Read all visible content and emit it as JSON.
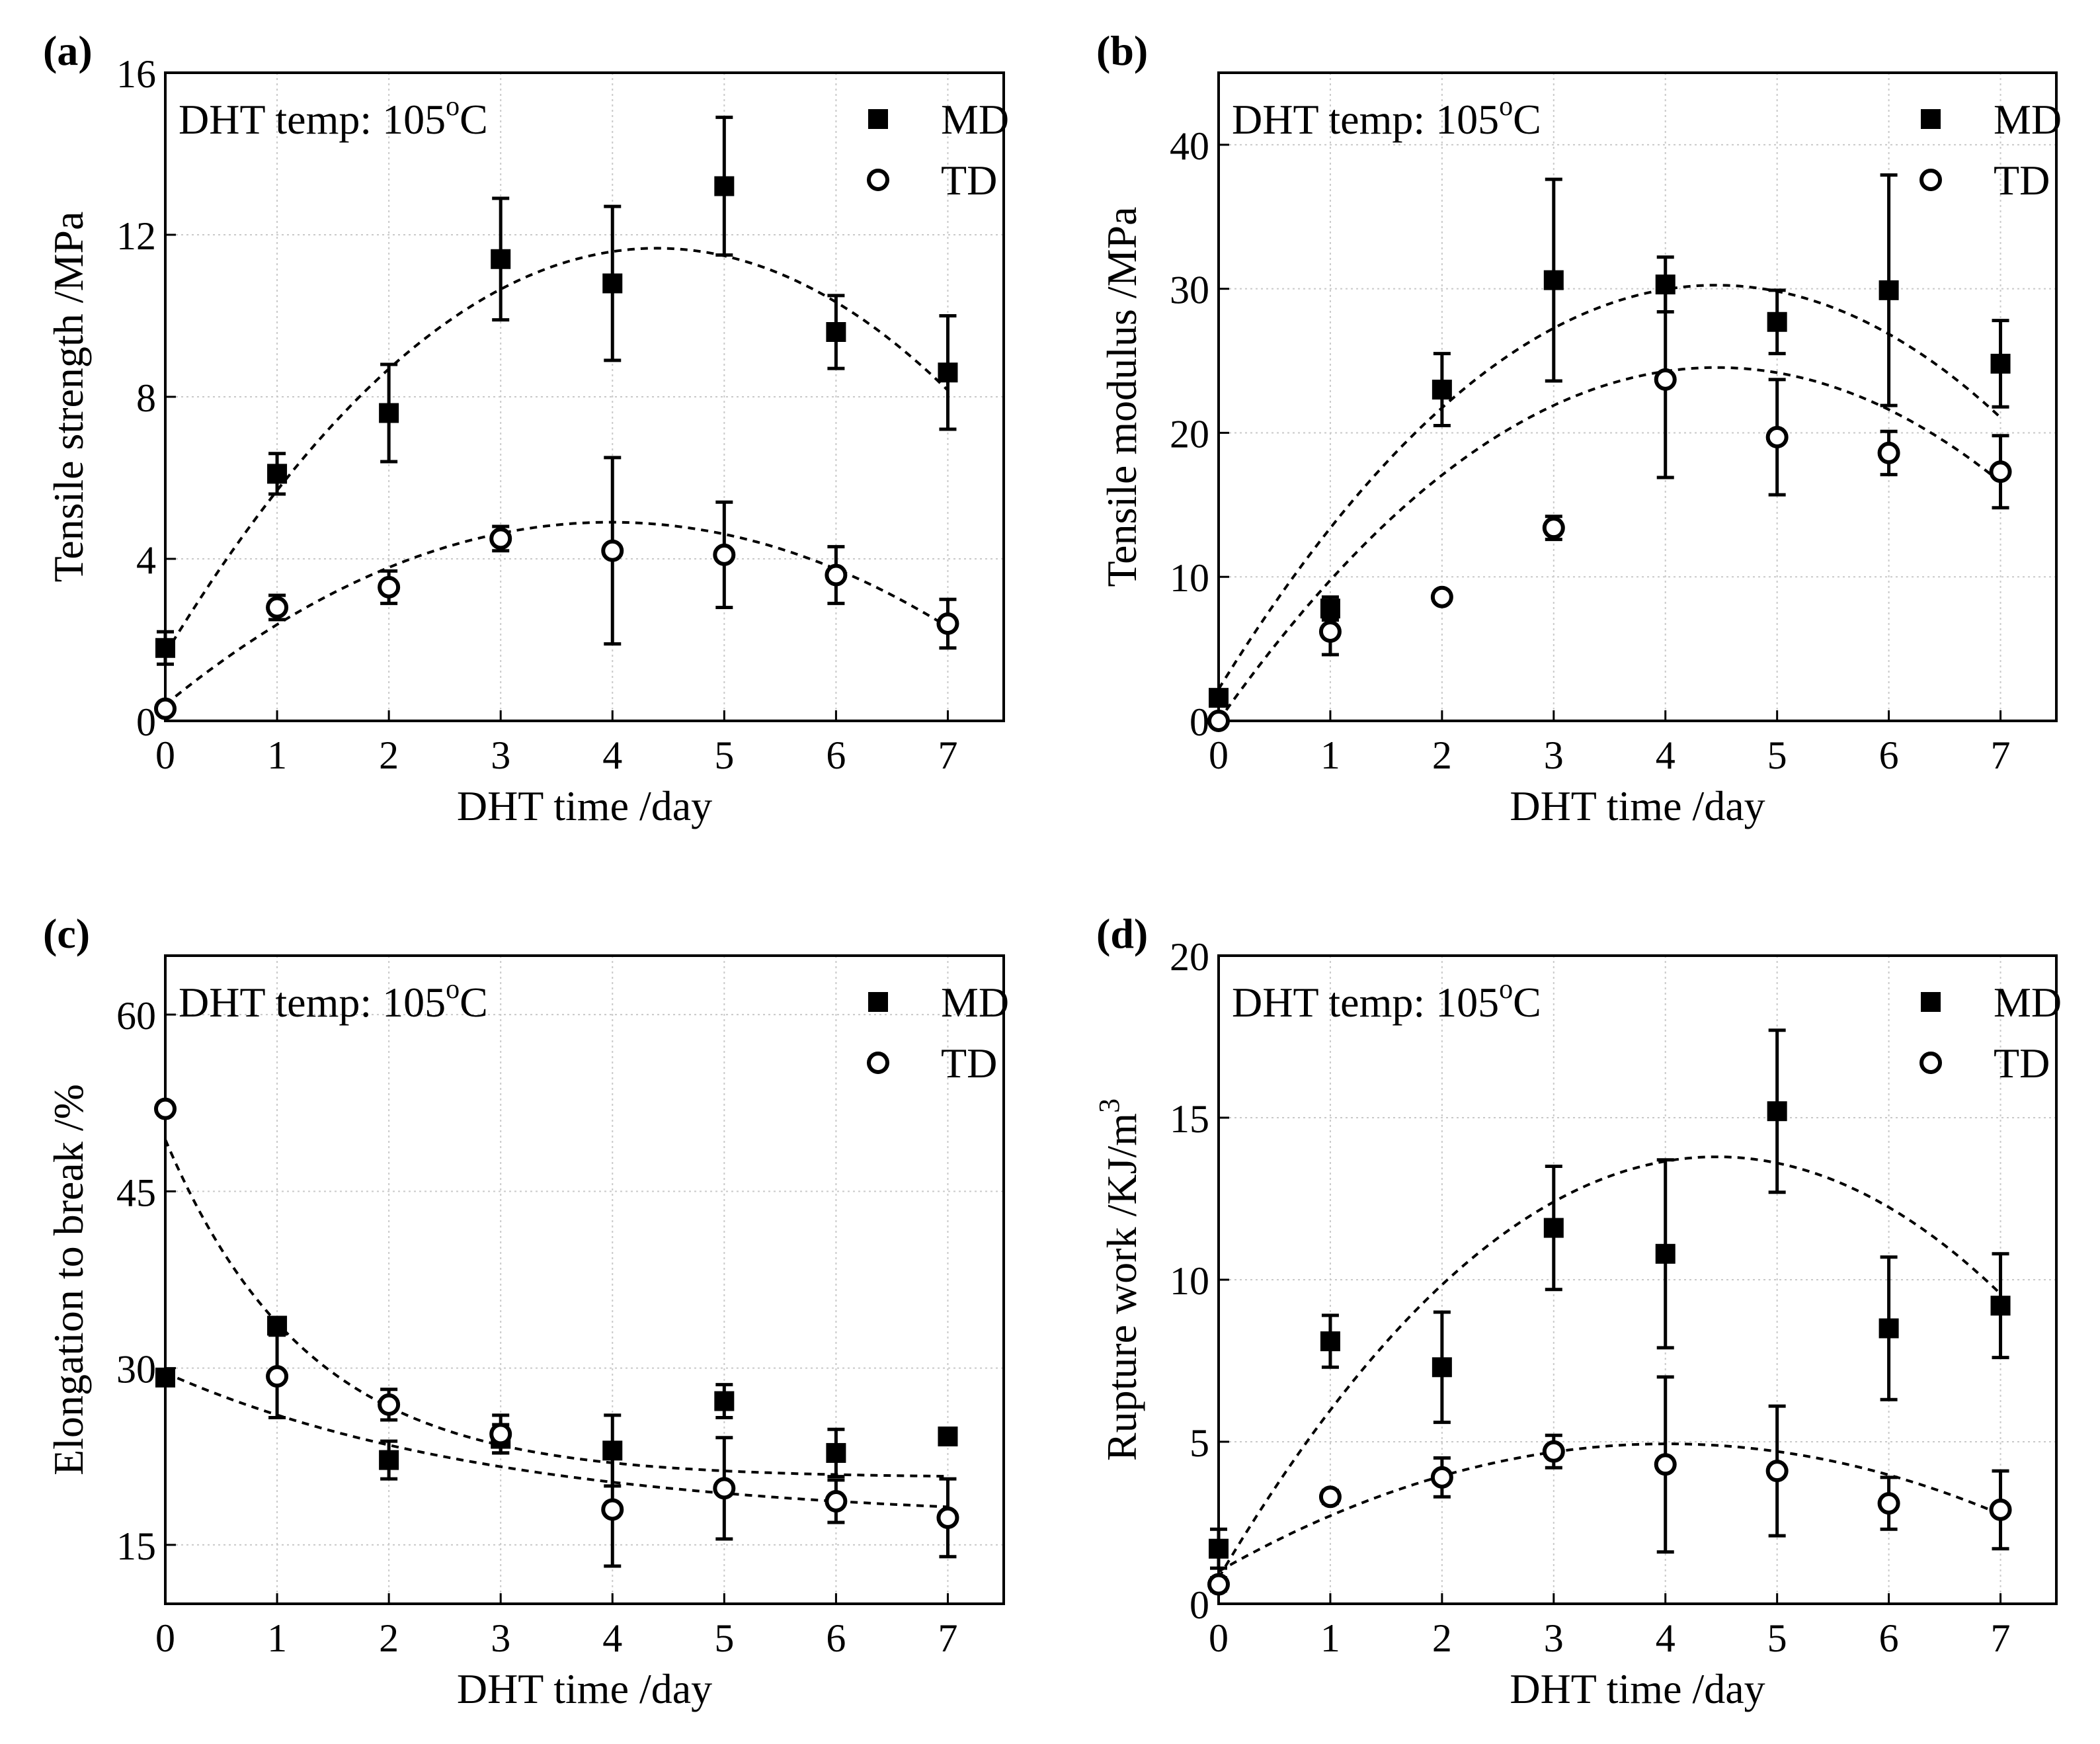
{
  "figure": {
    "background": "#ffffff",
    "ink": "#000000",
    "grid_color": "#c9c9c9"
  },
  "chart_data": [
    {
      "panel": "(a)",
      "type": "scatter",
      "title": "",
      "annotation": "DHT temp: 105°C",
      "xlabel": "DHT time /day",
      "ylabel": "Tensile strength /MPa",
      "xlim": [
        0,
        7.5
      ],
      "ylim": [
        0,
        16
      ],
      "xticks": [
        0,
        1,
        2,
        3,
        4,
        5,
        6,
        7
      ],
      "yticks": [
        0,
        4,
        8,
        12,
        16
      ],
      "grid": true,
      "legend": {
        "position": "top-right",
        "entries": [
          "MD",
          "TD"
        ]
      },
      "x": [
        0,
        1,
        2,
        3,
        4,
        5,
        6,
        7
      ],
      "series": [
        {
          "name": "MD",
          "marker": "filled-square",
          "values": [
            1.8,
            6.1,
            7.6,
            11.4,
            10.8,
            13.2,
            9.6,
            8.6
          ],
          "errors": [
            0.4,
            0.5,
            1.2,
            1.5,
            1.9,
            1.7,
            0.9,
            1.4
          ],
          "fit": {
            "type": "quadratic",
            "a": -0.518,
            "b": 4.556,
            "c": 1.65
          }
        },
        {
          "name": "TD",
          "marker": "open-circle",
          "values": [
            0.3,
            2.8,
            3.3,
            4.5,
            4.2,
            4.1,
            3.6,
            2.4
          ],
          "errors": [
            0.1,
            0.3,
            0.4,
            0.3,
            2.3,
            1.3,
            0.7,
            0.6
          ],
          "fit": {
            "type": "quadratic",
            "a": -0.284,
            "b": 2.262,
            "c": 0.4
          }
        }
      ]
    },
    {
      "panel": "(b)",
      "type": "scatter",
      "title": "",
      "annotation": "DHT temp: 105°C",
      "xlabel": "DHT time /day",
      "ylabel": "Tensile modulus /MPa",
      "xlim": [
        0,
        7.5
      ],
      "ylim": [
        0,
        45
      ],
      "xticks": [
        0,
        1,
        2,
        3,
        4,
        5,
        6,
        7
      ],
      "yticks": [
        0,
        10,
        20,
        30,
        40
      ],
      "grid": true,
      "legend": {
        "position": "top-right",
        "entries": [
          "MD",
          "TD"
        ]
      },
      "x": [
        0,
        1,
        2,
        3,
        4,
        5,
        6,
        7
      ],
      "series": [
        {
          "name": "MD",
          "marker": "filled-square",
          "values": [
            1.6,
            7.8,
            23.0,
            30.6,
            30.3,
            27.7,
            29.9,
            24.8
          ],
          "errors": [
            0.5,
            0.8,
            2.5,
            7.0,
            1.9,
            2.2,
            8.0,
            3.0
          ],
          "fit": {
            "type": "quadratic",
            "a": -1.415,
            "b": 12.6,
            "c": 2.2
          }
        },
        {
          "name": "TD",
          "marker": "open-circle",
          "values": [
            0.0,
            6.2,
            8.6,
            13.4,
            23.7,
            19.7,
            18.6,
            17.3
          ],
          "errors": [
            0.2,
            1.6,
            0.4,
            0.8,
            6.8,
            4.0,
            1.5,
            2.5
          ],
          "fit": {
            "type": "quadratic",
            "a": -1.233,
            "b": 11.0,
            "c": 0.0
          }
        }
      ]
    },
    {
      "panel": "(c)",
      "type": "scatter",
      "title": "",
      "annotation": "DHT temp: 105°C",
      "xlabel": "DHT time /day",
      "ylabel": "Elongation to break /%",
      "xlim": [
        0,
        7.5
      ],
      "ylim": [
        10,
        65
      ],
      "xticks": [
        0,
        1,
        2,
        3,
        4,
        5,
        6,
        7
      ],
      "yticks": [
        15,
        30,
        45,
        60
      ],
      "grid": true,
      "legend": {
        "position": "top-right",
        "entries": [
          "MD",
          "TD"
        ]
      },
      "x": [
        0,
        1,
        2,
        3,
        4,
        5,
        6,
        7
      ],
      "series": [
        {
          "name": "MD",
          "marker": "filled-square",
          "values": [
            29.2,
            33.6,
            22.2,
            24.0,
            23.0,
            27.2,
            22.8,
            24.2
          ],
          "errors": [
            0.4,
            0.5,
            1.6,
            1.2,
            3.0,
            1.4,
            2.0,
            0.6
          ],
          "fit": {
            "type": "exp-decay",
            "y0": 20.7,
            "A": 28.7,
            "t": 1.28
          }
        },
        {
          "name": "TD",
          "marker": "open-circle",
          "values": [
            52.0,
            29.3,
            26.9,
            24.4,
            18.0,
            19.8,
            18.7,
            17.3
          ],
          "errors": [
            0.5,
            3.5,
            1.3,
            1.6,
            4.8,
            4.3,
            1.8,
            3.3
          ],
          "fit": {
            "type": "exp-decay",
            "y0": 17.0,
            "A": 12.6,
            "t": 3.0
          }
        }
      ]
    },
    {
      "panel": "(d)",
      "type": "scatter",
      "title": "",
      "annotation": "DHT temp: 105°C",
      "xlabel": "DHT time /day",
      "ylabel": "Rupture work /KJ/m3",
      "ylabel_main": "Rupture work /KJ/m",
      "ylabel_sup": "3",
      "xlim": [
        0,
        7.5
      ],
      "ylim": [
        0,
        20
      ],
      "xticks": [
        0,
        1,
        2,
        3,
        4,
        5,
        6,
        7
      ],
      "yticks": [
        0,
        5,
        10,
        15,
        20
      ],
      "grid": true,
      "legend": {
        "position": "top-right",
        "entries": [
          "MD",
          "TD"
        ]
      },
      "x": [
        0,
        1,
        2,
        3,
        4,
        5,
        6,
        7
      ],
      "series": [
        {
          "name": "MD",
          "marker": "filled-square",
          "values": [
            1.7,
            8.1,
            7.3,
            11.6,
            10.8,
            15.2,
            8.5,
            9.2
          ],
          "errors": [
            0.6,
            0.8,
            1.7,
            1.9,
            2.9,
            2.5,
            2.2,
            1.6
          ],
          "fit": {
            "type": "quadratic",
            "a": -0.654,
            "b": 5.83,
            "c": 0.8
          }
        },
        {
          "name": "TD",
          "marker": "open-circle",
          "values": [
            0.6,
            3.3,
            3.9,
            4.7,
            4.3,
            4.1,
            3.1,
            2.9
          ],
          "errors": [
            0.2,
            0.2,
            0.6,
            0.5,
            2.7,
            2.0,
            0.8,
            1.2
          ],
          "fit": {
            "type": "quadratic",
            "a": -0.244,
            "b": 1.96,
            "c": 1.0
          }
        }
      ]
    }
  ]
}
